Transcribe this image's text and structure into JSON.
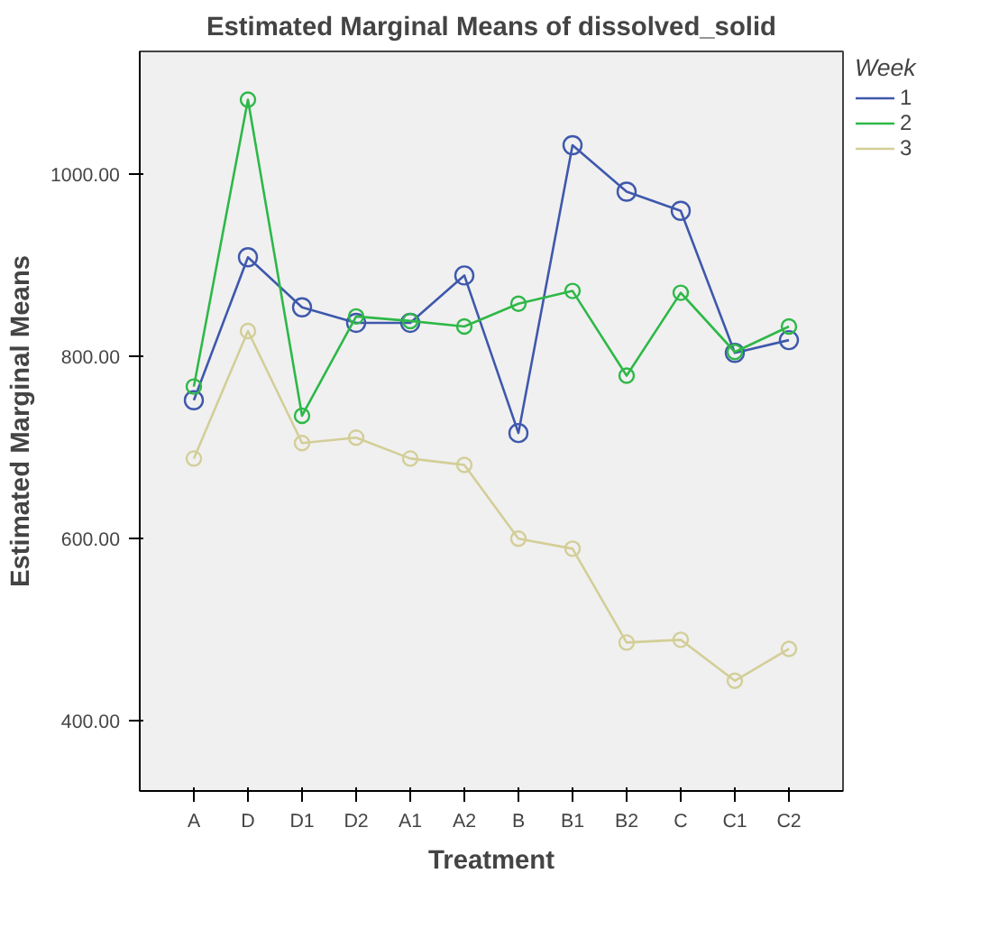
{
  "chart_data": {
    "type": "line",
    "title": "Estimated Marginal Means of dissolved_solid",
    "xlabel": "Treatment",
    "ylabel": "Estimated Marginal Means",
    "legend_title": "Week",
    "categories": [
      "A",
      "D",
      "D1",
      "D2",
      "A1",
      "A2",
      "B",
      "B1",
      "B2",
      "C",
      "C1",
      "C2"
    ],
    "series": [
      {
        "name": "1",
        "color": "#3e58ac",
        "values": [
          752,
          909,
          854,
          837,
          837,
          889,
          716,
          1032,
          981,
          960,
          804,
          818
        ]
      },
      {
        "name": "2",
        "color": "#2eb848",
        "values": [
          767,
          1082,
          735,
          844,
          839,
          833,
          858,
          872,
          779,
          870,
          805,
          833
        ]
      },
      {
        "name": "3",
        "color": "#d3ce97",
        "values": [
          688,
          828,
          705,
          711,
          688,
          681,
          600,
          589,
          486,
          489,
          444,
          479
        ]
      }
    ],
    "ylim": [
      323,
      1135
    ],
    "yticks": [
      {
        "value": 400,
        "label": "400.00"
      },
      {
        "value": 600,
        "label": "600.00"
      },
      {
        "value": 800,
        "label": "800.00"
      },
      {
        "value": 1000,
        "label": "1000.00"
      }
    ],
    "grid": false,
    "legend": "top right",
    "marker": "circle",
    "line_style": "solid"
  }
}
